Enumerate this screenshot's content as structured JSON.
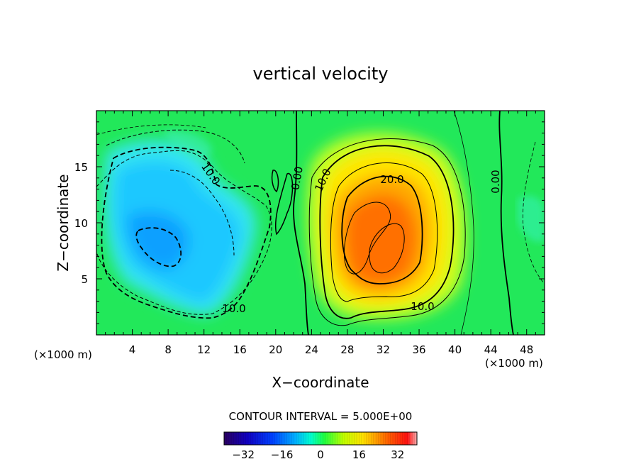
{
  "chart_data": {
    "type": "heatmap",
    "title": "vertical velocity",
    "xlabel": "X−coordinate",
    "ylabel": "Z−coordinate",
    "x_unit_left": "(×1000 m)",
    "x_unit_right": "(×1000 m)",
    "xlim": [
      0,
      50
    ],
    "ylim": [
      0,
      20
    ],
    "xticks": [
      "4",
      "8",
      "12",
      "16",
      "20",
      "24",
      "28",
      "32",
      "36",
      "40",
      "44",
      "48"
    ],
    "yticks": [
      "5",
      "10",
      "15"
    ],
    "contour_interval_text": "CONTOUR INTERVAL = 5.000E+00",
    "contour_labels": [
      "10.0",
      "10.0",
      "0.00",
      "10.0",
      "20.0",
      "10.0",
      "0.00"
    ],
    "colorbar": {
      "range": [
        -40,
        40
      ],
      "ticks": [
        "−32",
        "−16",
        "0",
        "16",
        "32"
      ],
      "tick_values": [
        -32,
        -16,
        0,
        16,
        32
      ]
    },
    "features": [
      {
        "kind": "downdraft",
        "x": 8,
        "z": 9,
        "min": -20
      },
      {
        "kind": "updraft",
        "x": 32,
        "z": 9,
        "max": 30
      }
    ],
    "grid": false
  }
}
